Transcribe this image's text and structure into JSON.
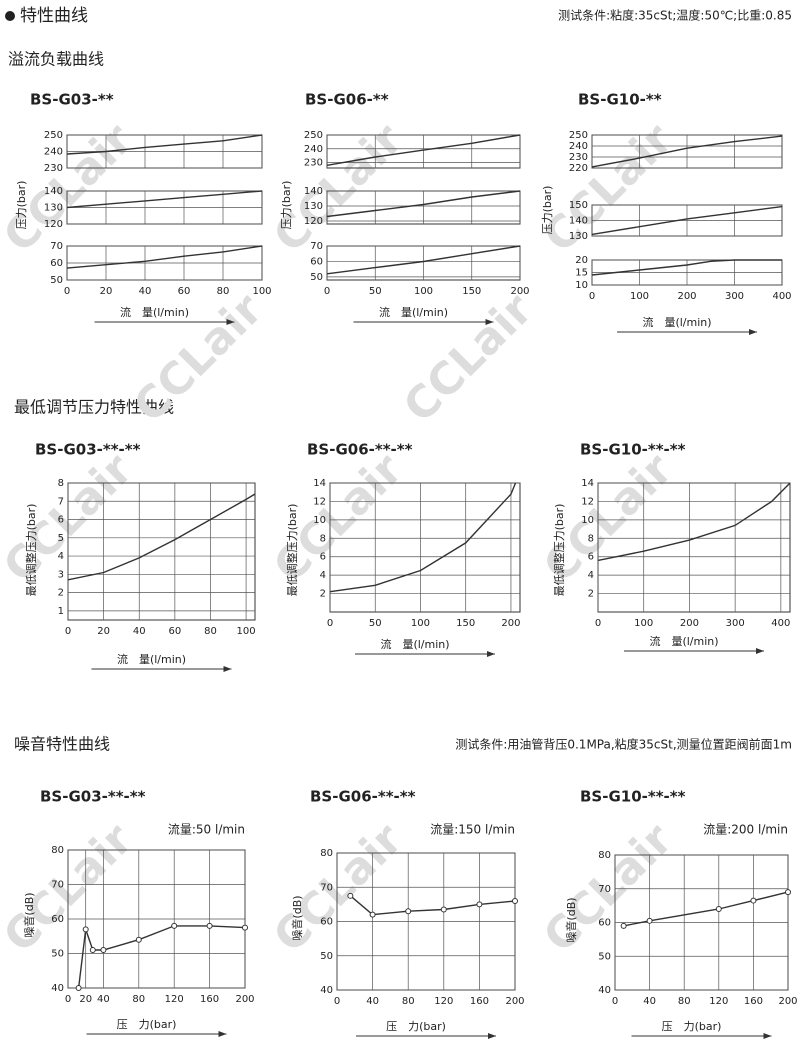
{
  "header": {
    "title": "特性曲线",
    "conditions": "测试条件:粘度:35cSt;温度:50℃;比重:0.85"
  },
  "watermark": "CCLair",
  "sections": [
    {
      "title": "溢流负载曲线"
    },
    {
      "title": "最低调节压力特性曲线"
    },
    {
      "title": "噪音特性曲线",
      "conditions": "测试条件:用油管背压0.1MPa,粘度35cSt,测量位置距阀前面1m"
    }
  ],
  "chart_data": [
    {
      "type": "line",
      "title": "BS-G03-**",
      "xlabel": "流　量(l/min)",
      "ylabel": "压力(bar)",
      "xlim": [
        0,
        100
      ],
      "xticks": [
        0,
        20,
        40,
        60,
        80,
        100
      ],
      "color": "#333",
      "panels": [
        {
          "ylim": [
            230,
            250
          ],
          "yticks": [
            230,
            240,
            250
          ],
          "x": [
            0,
            20,
            40,
            60,
            80,
            100
          ],
          "values": [
            238.5,
            240,
            242.5,
            244.5,
            246.5,
            250
          ]
        },
        {
          "ylim": [
            120,
            140
          ],
          "yticks": [
            120,
            130,
            140
          ],
          "x": [
            0,
            20,
            40,
            60,
            80,
            100
          ],
          "values": [
            130,
            132,
            134,
            136,
            138,
            140
          ]
        },
        {
          "ylim": [
            50,
            70
          ],
          "yticks": [
            50,
            60,
            70
          ],
          "x": [
            0,
            20,
            40,
            60,
            80,
            100
          ],
          "values": [
            57,
            59,
            61,
            64,
            66.5,
            70
          ]
        }
      ]
    },
    {
      "type": "line",
      "title": "BS-G06-**",
      "xlabel": "流　量(l/min)",
      "ylabel": "压力(bar)",
      "xlim": [
        0,
        200
      ],
      "xticks": [
        0,
        50,
        100,
        150,
        200
      ],
      "color": "#333",
      "panels": [
        {
          "ylim": [
            226,
            250
          ],
          "yticks": [
            230,
            240,
            250
          ],
          "x": [
            0,
            50,
            100,
            150,
            200
          ],
          "values": [
            228,
            234,
            239,
            244,
            250
          ]
        },
        {
          "ylim": [
            118,
            140
          ],
          "yticks": [
            120,
            130,
            140
          ],
          "x": [
            0,
            50,
            100,
            150,
            200
          ],
          "values": [
            123,
            127,
            131,
            136,
            140
          ]
        },
        {
          "ylim": [
            48,
            70
          ],
          "yticks": [
            50,
            60,
            70
          ],
          "x": [
            0,
            50,
            100,
            150,
            200
          ],
          "values": [
            52,
            56,
            60,
            65,
            70
          ]
        }
      ]
    },
    {
      "type": "line",
      "title": "BS-G10-**",
      "xlabel": "流　量(l/min)",
      "ylabel": "压力(bar)",
      "xlim": [
        0,
        400
      ],
      "xticks": [
        0,
        100,
        200,
        300,
        400
      ],
      "color": "#333",
      "panels": [
        {
          "ylim": [
            220,
            250
          ],
          "yticks": [
            220,
            230,
            240,
            250
          ],
          "x": [
            0,
            100,
            200,
            300,
            400
          ],
          "values": [
            221,
            229,
            238,
            244,
            249
          ]
        },
        {
          "ylim": [
            130,
            150
          ],
          "yticks": [
            130,
            140,
            150
          ],
          "x": [
            0,
            100,
            200,
            300,
            400
          ],
          "values": [
            131,
            136,
            141,
            145,
            149
          ]
        },
        {
          "ylim": [
            10,
            20
          ],
          "yticks": [
            10,
            15,
            20
          ],
          "x": [
            0,
            100,
            200,
            250,
            300,
            400
          ],
          "values": [
            14,
            16,
            18,
            19.5,
            20,
            20
          ]
        }
      ]
    },
    {
      "type": "line",
      "title": "BS-G03-**-**",
      "xlabel": "流　量(l/min)",
      "ylabel": "最低调整压力(bar)",
      "xlim": [
        0,
        105
      ],
      "xticks": [
        0,
        20,
        40,
        60,
        80,
        100
      ],
      "color": "#333",
      "panels": [
        {
          "ylim": [
            0.5,
            8
          ],
          "yticks": [
            1,
            2,
            3,
            4,
            5,
            6,
            7,
            8
          ],
          "x": [
            0,
            20,
            40,
            60,
            80,
            100,
            105
          ],
          "values": [
            2.7,
            3.1,
            3.9,
            4.9,
            6.0,
            7.1,
            7.4
          ]
        }
      ]
    },
    {
      "type": "line",
      "title": "BS-G06-**-**",
      "xlabel": "流　量(l/min)",
      "ylabel": "最低调整压力(bar)",
      "xlim": [
        0,
        210
      ],
      "xticks": [
        0,
        50,
        100,
        150,
        200
      ],
      "color": "#333",
      "panels": [
        {
          "ylim": [
            0,
            14
          ],
          "yticks": [
            2,
            4,
            6,
            8,
            10,
            12,
            14
          ],
          "x": [
            0,
            50,
            100,
            150,
            200,
            205
          ],
          "values": [
            2.2,
            2.9,
            4.5,
            7.5,
            12.8,
            14
          ]
        }
      ]
    },
    {
      "type": "line",
      "title": "BS-G10-**-**",
      "xlabel": "流　量(l/min)",
      "ylabel": "最低调整压力(bar)",
      "xlim": [
        0,
        420
      ],
      "xticks": [
        0,
        100,
        200,
        300,
        400
      ],
      "color": "#333",
      "panels": [
        {
          "ylim": [
            0,
            14
          ],
          "yticks": [
            2,
            4,
            6,
            8,
            10,
            12,
            14
          ],
          "x": [
            0,
            100,
            200,
            300,
            380,
            420
          ],
          "values": [
            5.6,
            6.6,
            7.8,
            9.4,
            12,
            14
          ]
        }
      ]
    },
    {
      "type": "line",
      "title": "BS-G03-**-**",
      "flow_label": "流量:50 l/min",
      "xlabel": "压　力(bar)",
      "ylabel": "噪音(dB)",
      "xlim": [
        0,
        200
      ],
      "xticks": [
        0,
        20,
        40,
        80,
        120,
        160,
        200
      ],
      "color": "#333",
      "markers": true,
      "panels": [
        {
          "ylim": [
            40,
            80
          ],
          "yticks": [
            40,
            50,
            60,
            70,
            80
          ],
          "x": [
            12,
            20,
            28,
            40,
            80,
            120,
            160,
            200
          ],
          "values": [
            40,
            57,
            51,
            51,
            54,
            58,
            58,
            57.5
          ]
        }
      ]
    },
    {
      "type": "line",
      "title": "BS-G06-**-**",
      "flow_label": "流量:150 l/min",
      "xlabel": "压　力(bar)",
      "ylabel": "噪音(dB)",
      "xlim": [
        0,
        200
      ],
      "xticks": [
        0,
        40,
        80,
        120,
        160,
        200
      ],
      "color": "#333",
      "markers": true,
      "panels": [
        {
          "ylim": [
            40,
            80
          ],
          "yticks": [
            40,
            50,
            60,
            70,
            80
          ],
          "x": [
            15,
            40,
            80,
            120,
            160,
            200
          ],
          "values": [
            67.5,
            62,
            63,
            63.5,
            65,
            66
          ]
        }
      ]
    },
    {
      "type": "line",
      "title": "BS-G10-**-**",
      "flow_label": "流量:200 l/min",
      "xlabel": "压　力(bar)",
      "ylabel": "噪音(dB)",
      "xlim": [
        0,
        200
      ],
      "xticks": [
        0,
        40,
        80,
        120,
        160,
        200
      ],
      "color": "#333",
      "markers": true,
      "panels": [
        {
          "ylim": [
            40,
            80
          ],
          "yticks": [
            40,
            50,
            60,
            70,
            80
          ],
          "x": [
            10,
            40,
            120,
            160,
            200
          ],
          "values": [
            59,
            60.5,
            64,
            66.5,
            69
          ]
        }
      ]
    }
  ]
}
